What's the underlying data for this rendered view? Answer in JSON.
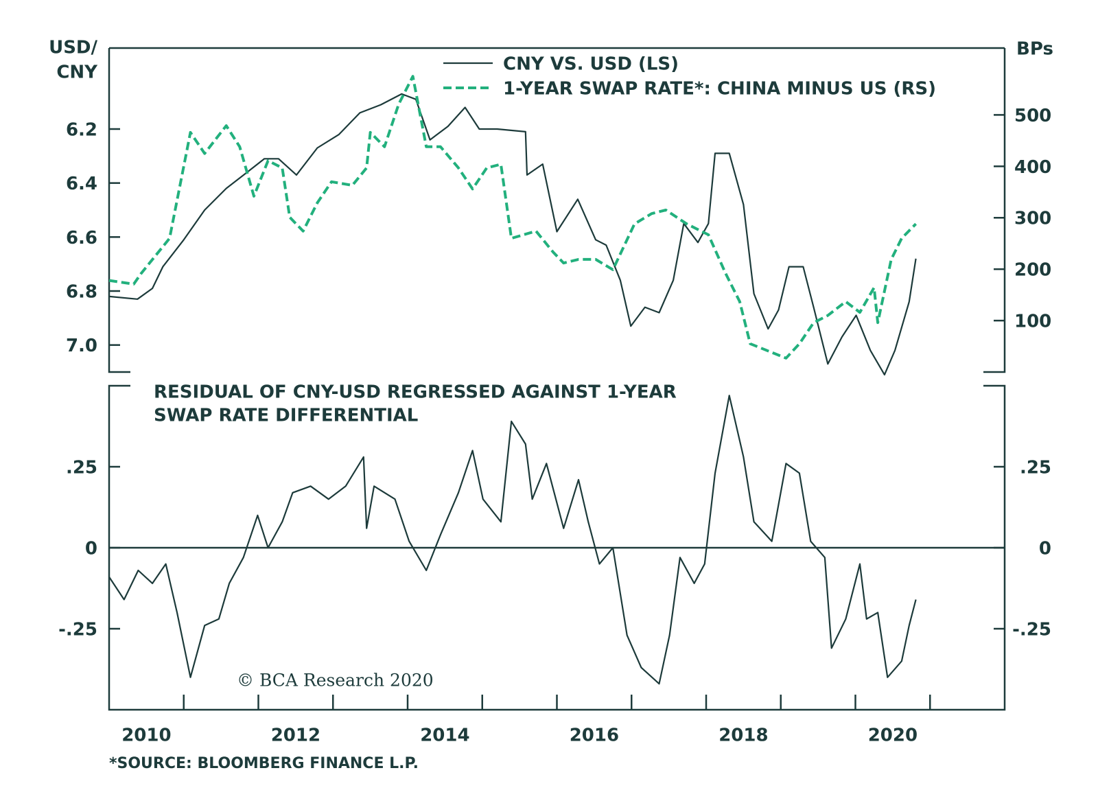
{
  "chart_data": [
    {
      "type": "line",
      "ylabel": [
        "USD/",
        "CNY"
      ],
      "y2label": "BPs",
      "xlim": [
        2010,
        2022
      ],
      "ylim": [
        5.9,
        7.1
      ],
      "y_inverted": true,
      "yticks": [
        6.2,
        6.4,
        6.6,
        6.8,
        {
          "value": 7.0,
          "label": "7.0"
        }
      ],
      "y2lim": [
        0,
        630
      ],
      "y2ticks": [
        100,
        200,
        300,
        400,
        500
      ],
      "series": [
        {
          "name": "CNY VS. USD (LS)",
          "color": "#1c3a3a",
          "dash": false,
          "x": [
            2010.0,
            2010.38,
            2010.58,
            2010.72,
            2011.0,
            2011.28,
            2011.57,
            2011.85,
            2012.08,
            2012.27,
            2012.51,
            2012.79,
            2013.08,
            2013.36,
            2013.64,
            2013.92,
            2014.11,
            2014.3,
            2014.54,
            2014.77,
            2014.96,
            2015.2,
            2015.58,
            2015.6,
            2015.81,
            2016.0,
            2016.28,
            2016.52,
            2016.66,
            2016.85,
            2016.99,
            2017.18,
            2017.37,
            2017.56,
            2017.7,
            2017.89,
            2018.03,
            2018.12,
            2018.31,
            2018.5,
            2018.64,
            2018.83,
            2018.97,
            2019.11,
            2019.3,
            2019.44,
            2019.63,
            2019.82,
            2020.01,
            2020.2,
            2020.39,
            2020.53,
            2020.72,
            2020.81
          ],
          "values": [
            6.82,
            6.83,
            6.79,
            6.71,
            6.61,
            6.5,
            6.42,
            6.36,
            6.31,
            6.31,
            6.37,
            6.27,
            6.22,
            6.14,
            6.11,
            6.07,
            6.09,
            6.24,
            6.19,
            6.12,
            6.2,
            6.2,
            6.21,
            6.37,
            6.33,
            6.58,
            6.46,
            6.61,
            6.63,
            6.76,
            6.93,
            6.86,
            6.88,
            6.76,
            6.55,
            6.62,
            6.55,
            6.29,
            6.29,
            6.48,
            6.81,
            6.94,
            6.87,
            6.71,
            6.71,
            6.86,
            7.07,
            6.97,
            6.89,
            7.02,
            7.11,
            7.02,
            6.84,
            6.68
          ]
        },
        {
          "name": "1-YEAR SWAP RATE*: CHINA MINUS US (RS)",
          "color": "#22b07d",
          "dash": true,
          "axis": "y2",
          "x": [
            2010.0,
            2010.33,
            2010.43,
            2010.81,
            2011.09,
            2011.28,
            2011.57,
            2011.75,
            2011.94,
            2012.13,
            2012.32,
            2012.42,
            2012.6,
            2012.79,
            2012.98,
            2013.26,
            2013.45,
            2013.5,
            2013.69,
            2013.88,
            2014.07,
            2014.25,
            2014.44,
            2014.68,
            2014.87,
            2015.06,
            2015.25,
            2015.39,
            2015.72,
            2015.95,
            2016.09,
            2016.29,
            2016.52,
            2016.75,
            2017.04,
            2017.27,
            2017.46,
            2017.74,
            2018.03,
            2018.26,
            2018.45,
            2018.59,
            2018.83,
            2019.07,
            2019.25,
            2019.44,
            2019.63,
            2019.87,
            2020.06,
            2020.25,
            2020.3,
            2020.48,
            2020.62,
            2020.81
          ],
          "values": [
            178,
            171,
            192,
            260,
            466,
            425,
            479,
            438,
            342,
            411,
            397,
            301,
            274,
            329,
            370,
            363,
            397,
            466,
            438,
            521,
            575,
            438,
            438,
            397,
            356,
            397,
            404,
            260,
            274,
            233,
            212,
            219,
            219,
            199,
            288,
            308,
            315,
            288,
            267,
            192,
            137,
            55,
            41,
            27,
            55,
            96,
            110,
            137,
            116,
            164,
            96,
            219,
            260,
            288
          ]
        }
      ]
    },
    {
      "type": "line",
      "title": [
        "RESIDUAL OF CNY-USD REGRESSED AGAINST 1-YEAR",
        "SWAP RATE DIFFERENTIAL"
      ],
      "copyright": "© BCA Research 2020",
      "source": "*SOURCE: BLOOMBERG FINANCE L.P.",
      "xlim": [
        2010,
        2022
      ],
      "xticks": [
        2011,
        2012,
        2013,
        2014,
        2015,
        2016,
        2017,
        2018,
        2019,
        2020,
        2021
      ],
      "year_labels": [
        2010,
        2012,
        2014,
        2016,
        2018,
        2020
      ],
      "ylim": [
        -0.5,
        0.5
      ],
      "yticks": [
        {
          "value": -0.25,
          "label": "-.25"
        },
        0,
        {
          "value": 0.25,
          "label": ".25"
        }
      ],
      "zero_line": true,
      "series": [
        {
          "color": "#1c3a3a",
          "x": [
            2010.0,
            2010.2,
            2010.39,
            2010.58,
            2010.76,
            2010.91,
            2011.09,
            2011.28,
            2011.47,
            2011.61,
            2011.8,
            2011.99,
            2012.13,
            2012.32,
            2012.46,
            2012.7,
            2012.94,
            2013.17,
            2013.41,
            2013.45,
            2013.55,
            2013.83,
            2014.02,
            2014.25,
            2014.44,
            2014.68,
            2014.87,
            2015.01,
            2015.25,
            2015.39,
            2015.58,
            2015.67,
            2015.86,
            2016.09,
            2016.29,
            2016.42,
            2016.57,
            2016.75,
            2016.94,
            2017.13,
            2017.37,
            2017.51,
            2017.65,
            2017.84,
            2017.98,
            2018.12,
            2018.31,
            2018.5,
            2018.64,
            2018.88,
            2019.07,
            2019.25,
            2019.4,
            2019.59,
            2019.68,
            2019.87,
            2020.06,
            2020.15,
            2020.3,
            2020.43,
            2020.62,
            2020.72,
            2020.81
          ],
          "values": [
            -0.09,
            -0.16,
            -0.07,
            -0.11,
            -0.05,
            -0.2,
            -0.4,
            -0.24,
            -0.22,
            -0.11,
            -0.03,
            0.1,
            0.0,
            0.08,
            0.17,
            0.19,
            0.15,
            0.19,
            0.28,
            0.06,
            0.19,
            0.15,
            0.02,
            -0.07,
            0.04,
            0.17,
            0.3,
            0.15,
            0.08,
            0.39,
            0.32,
            0.15,
            0.26,
            0.06,
            0.21,
            0.08,
            -0.05,
            0.0,
            -0.27,
            -0.37,
            -0.42,
            -0.27,
            -0.03,
            -0.11,
            -0.05,
            0.23,
            0.47,
            0.28,
            0.08,
            0.02,
            0.26,
            0.23,
            0.02,
            -0.03,
            -0.31,
            -0.22,
            -0.05,
            -0.22,
            -0.2,
            -0.4,
            -0.35,
            -0.24,
            -0.16
          ]
        }
      ]
    }
  ]
}
